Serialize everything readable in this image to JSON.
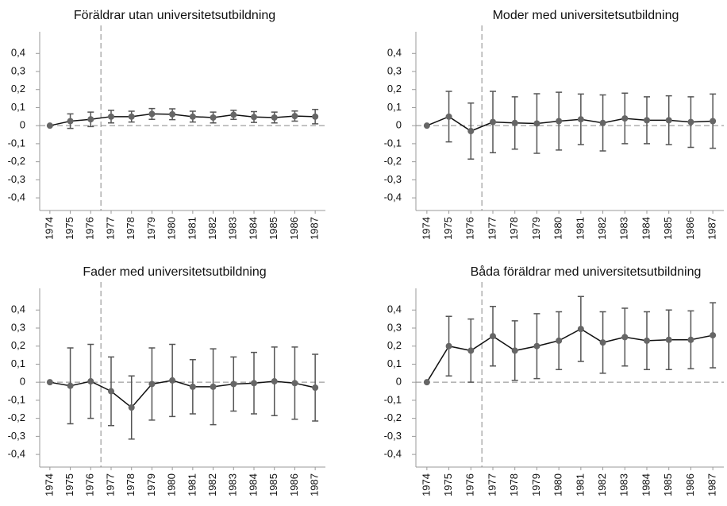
{
  "chart_data": [
    {
      "type": "line",
      "title": "Föräldrar utan universitetsutbildning",
      "categories": [
        "1974",
        "1975",
        "1976",
        "1977",
        "1978",
        "1979",
        "1980",
        "1981",
        "1982",
        "1983",
        "1984",
        "1985",
        "1986",
        "1987"
      ],
      "values": [
        0,
        0.025,
        0.035,
        0.05,
        0.05,
        0.065,
        0.063,
        0.05,
        0.045,
        0.06,
        0.048,
        0.045,
        0.053,
        0.05
      ],
      "errors": [
        null,
        0.04,
        0.04,
        0.035,
        0.03,
        0.03,
        0.03,
        0.03,
        0.03,
        0.025,
        0.03,
        0.03,
        0.028,
        0.04
      ],
      "ylim": [
        -0.47,
        0.52
      ],
      "yticks": [
        {
          "value": 0.4,
          "label": "0,4"
        },
        {
          "value": 0.3,
          "label": "0,3"
        },
        {
          "value": 0.2,
          "label": "0,2"
        },
        {
          "value": 0.1,
          "label": "0,1"
        },
        0,
        {
          "value": -0.1,
          "label": "-0,1"
        },
        {
          "value": -0.2,
          "label": "-0,2"
        },
        {
          "value": -0.3,
          "label": "-0,3"
        },
        {
          "value": -0.4,
          "label": "-0,4"
        }
      ],
      "hline": 0,
      "vline_after_category": "1976",
      "line_color": "#111111",
      "marker_color": "#666666",
      "error_color": "#555555"
    },
    {
      "type": "line",
      "title": "Moder med universitetsutbildning",
      "categories": [
        "1974",
        "1975",
        "1976",
        "1977",
        "1978",
        "1979",
        "1980",
        "1981",
        "1982",
        "1983",
        "1984",
        "1985",
        "1986",
        "1987"
      ],
      "values": [
        0,
        0.05,
        -0.03,
        0.02,
        0.015,
        0.012,
        0.025,
        0.035,
        0.015,
        0.04,
        0.03,
        0.03,
        0.02,
        0.025
      ],
      "errors": [
        null,
        0.14,
        0.155,
        0.17,
        0.145,
        0.165,
        0.16,
        0.14,
        0.155,
        0.14,
        0.13,
        0.135,
        0.14,
        0.15
      ],
      "ylim": [
        -0.47,
        0.52
      ],
      "yticks": [
        {
          "value": 0.4,
          "label": "0,4"
        },
        {
          "value": 0.3,
          "label": "0,3"
        },
        {
          "value": 0.2,
          "label": "0,2"
        },
        {
          "value": 0.1,
          "label": "0,1"
        },
        0,
        {
          "value": -0.1,
          "label": "-0,1"
        },
        {
          "value": -0.2,
          "label": "-0,2"
        },
        {
          "value": -0.3,
          "label": "-0,3"
        },
        {
          "value": -0.4,
          "label": "-0,4"
        }
      ],
      "hline": 0,
      "vline_after_category": "1976",
      "line_color": "#111111",
      "marker_color": "#666666",
      "error_color": "#555555"
    },
    {
      "type": "line",
      "title": "Fader med universitetsutbildning",
      "categories": [
        "1974",
        "1975",
        "1976",
        "1977",
        "1978",
        "1979",
        "1980",
        "1981",
        "1982",
        "1983",
        "1984",
        "1985",
        "1986",
        "1987"
      ],
      "values": [
        0,
        -0.02,
        0.005,
        -0.05,
        -0.14,
        -0.01,
        0.01,
        -0.025,
        -0.025,
        -0.01,
        -0.005,
        0.005,
        -0.005,
        -0.03
      ],
      "errors": [
        null,
        0.21,
        0.205,
        0.19,
        0.175,
        0.2,
        0.2,
        0.15,
        0.21,
        0.15,
        0.17,
        0.19,
        0.2,
        0.185
      ],
      "ylim": [
        -0.47,
        0.52
      ],
      "yticks": [
        {
          "value": 0.4,
          "label": "0,4"
        },
        {
          "value": 0.3,
          "label": "0,3"
        },
        {
          "value": 0.2,
          "label": "0,2"
        },
        {
          "value": 0.1,
          "label": "0,1"
        },
        0,
        {
          "value": -0.1,
          "label": "-0,1"
        },
        {
          "value": -0.2,
          "label": "-0,2"
        },
        {
          "value": -0.3,
          "label": "-0,3"
        },
        {
          "value": -0.4,
          "label": "-0,4"
        }
      ],
      "hline": 0,
      "vline_after_category": "1976",
      "line_color": "#111111",
      "marker_color": "#666666",
      "error_color": "#555555"
    },
    {
      "type": "line",
      "title": "Båda föräldrar med universitetsutbildning",
      "categories": [
        "1974",
        "1975",
        "1976",
        "1977",
        "1978",
        "1979",
        "1980",
        "1981",
        "1982",
        "1983",
        "1984",
        "1985",
        "1986",
        "1987"
      ],
      "values": [
        0,
        0.2,
        0.175,
        0.255,
        0.175,
        0.2,
        0.23,
        0.295,
        0.22,
        0.25,
        0.23,
        0.235,
        0.235,
        0.26
      ],
      "errors": [
        null,
        0.165,
        0.175,
        0.165,
        0.165,
        0.18,
        0.16,
        0.18,
        0.17,
        0.16,
        0.16,
        0.165,
        0.16,
        0.18
      ],
      "ylim": [
        -0.47,
        0.52
      ],
      "yticks": [
        {
          "value": 0.4,
          "label": "0,4"
        },
        {
          "value": 0.3,
          "label": "0,3"
        },
        {
          "value": 0.2,
          "label": "0,2"
        },
        {
          "value": 0.1,
          "label": "0,1"
        },
        0,
        {
          "value": -0.1,
          "label": "-0,1"
        },
        {
          "value": -0.2,
          "label": "-0,2"
        },
        {
          "value": -0.3,
          "label": "-0,3"
        },
        {
          "value": -0.4,
          "label": "-0,4"
        }
      ],
      "hline": 0,
      "vline_after_category": "1976",
      "line_color": "#111111",
      "marker_color": "#666666",
      "error_color": "#555555"
    }
  ]
}
